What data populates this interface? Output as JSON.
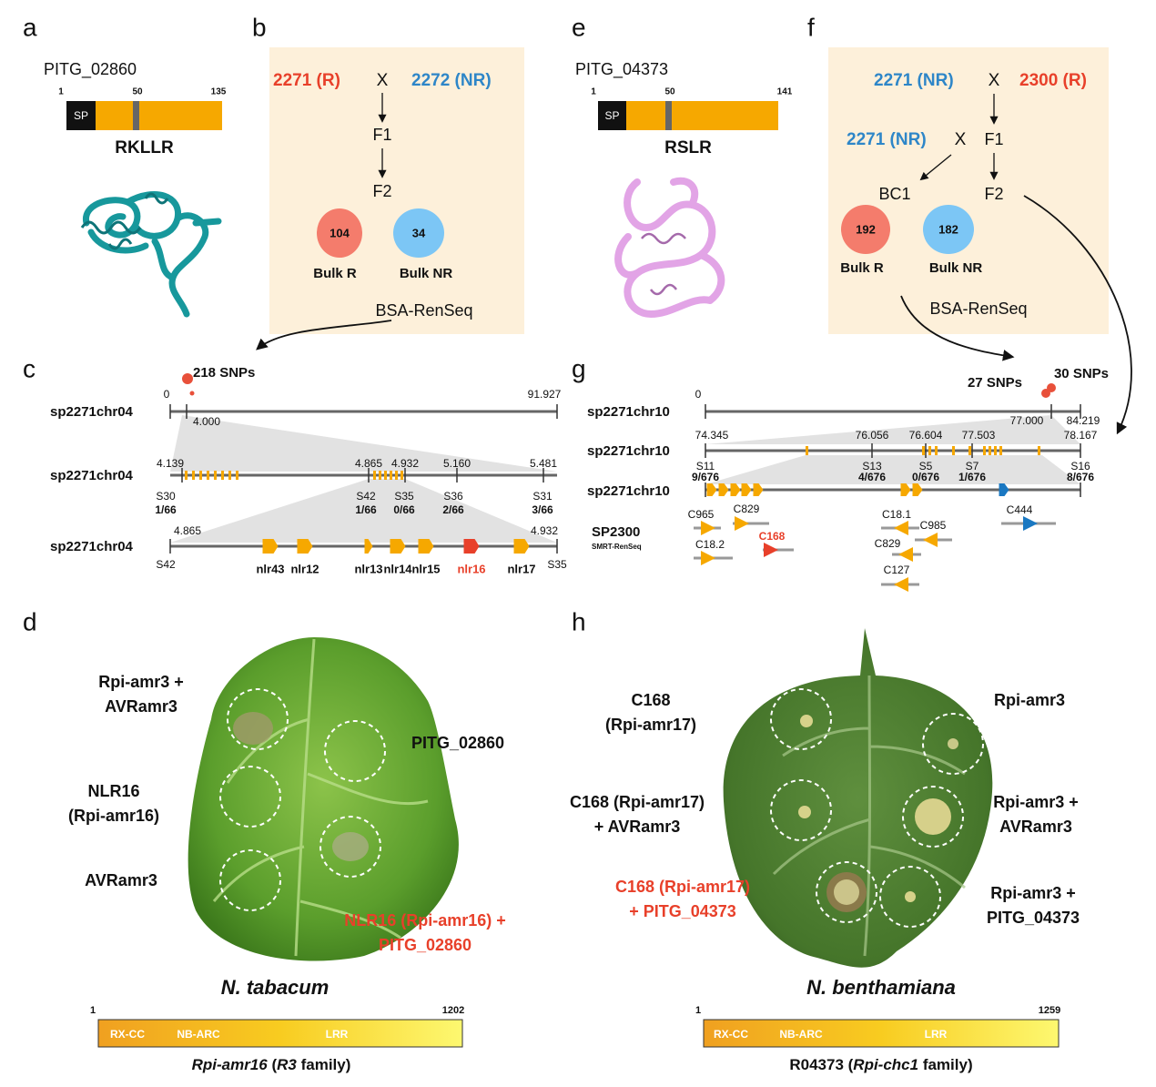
{
  "panels": {
    "a": {
      "letter": "a",
      "gene": "PITG_02860",
      "ticks": [
        "1",
        "50",
        "135"
      ],
      "domain": "SP",
      "motif": "RKLLR"
    },
    "b": {
      "letter": "b",
      "parent_r": "2271 (R)",
      "cross": "X",
      "parent_nr": "2272 (NR)",
      "f1": "F1",
      "f2": "F2",
      "bulks": [
        {
          "count": "104",
          "label": "Bulk R"
        },
        {
          "count": "34",
          "label": "Bulk NR"
        }
      ],
      "method": "BSA-RenSeq"
    },
    "c": {
      "letter": "c",
      "snps": "218 SNPs",
      "tracks": [
        {
          "name": "sp2271chr04",
          "labels": [
            "0",
            "91.927",
            "4.000"
          ]
        },
        {
          "name": "sp2271chr04",
          "positions": [
            "4.139",
            "4.865",
            "4.932",
            "5.160",
            "5.481"
          ],
          "markers": [
            {
              "name": "S30",
              "ratio": "1/66"
            },
            {
              "name": "S42",
              "ratio": "1/66"
            },
            {
              "name": "S35",
              "ratio": "0/66"
            },
            {
              "name": "S36",
              "ratio": "2/66"
            },
            {
              "name": "S31",
              "ratio": "3/66"
            }
          ]
        },
        {
          "name": "sp2271chr04",
          "positions": [
            "4.865",
            "4.932"
          ],
          "markers": [
            "S42",
            "S35"
          ],
          "genes": [
            "nlr43",
            "nlr12",
            "nlr13",
            "nlr14",
            "nlr15",
            "nlr16",
            "nlr17"
          ]
        }
      ]
    },
    "d": {
      "letter": "d",
      "labels": [
        [
          "Rpi-amr3 +",
          "AVRamr3"
        ],
        [
          "PITG_02860"
        ],
        [
          "NLR16",
          "(Rpi-amr16)"
        ],
        [
          "AVRamr3"
        ],
        [
          "NLR16 (Rpi-amr16) +",
          "PITG_02860"
        ]
      ],
      "species": "N. tabacum",
      "bar_ticks": [
        "1",
        "1202"
      ],
      "domains": [
        "RX-CC",
        "NB-ARC",
        "LRR"
      ],
      "caption": [
        "Rpi-amr16",
        " (",
        "R3",
        " family)"
      ]
    },
    "e": {
      "letter": "e",
      "gene": "PITG_04373",
      "ticks": [
        "1",
        "50",
        "141"
      ],
      "domain": "SP",
      "motif": "RSLR"
    },
    "f": {
      "letter": "f",
      "top": {
        "parent_nr": "2271 (NR)",
        "cross": "X",
        "parent_r": "2300 (R)"
      },
      "back": {
        "parent_nr": "2271 (NR)",
        "cross": "X",
        "f1": "F1"
      },
      "bc1": "BC1",
      "f2": "F2",
      "bulks": [
        {
          "count": "192",
          "label": "Bulk R"
        },
        {
          "count": "182",
          "label": "Bulk NR"
        }
      ],
      "method": "BSA-RenSeq"
    },
    "g": {
      "letter": "g",
      "snps": [
        "27 SNPs",
        "30 SNPs"
      ],
      "tracks": [
        {
          "name": "sp2271chr10",
          "labels": [
            "0",
            "84.219",
            "77.000"
          ]
        },
        {
          "name": "sp2271chr10",
          "positions": [
            "74.345",
            "76.056",
            "76.604",
            "77.503",
            "78.167"
          ],
          "markers": [
            {
              "name": "S11",
              "ratio": "9/676"
            },
            {
              "name": "S13",
              "ratio": "4/676"
            },
            {
              "name": "S5",
              "ratio": "0/676"
            },
            {
              "name": "S7",
              "ratio": "1/676"
            },
            {
              "name": "S16",
              "ratio": "8/676"
            }
          ]
        },
        {
          "name": "sp2271chr10"
        }
      ],
      "assembly": "SP2300",
      "assembly_method": "SMRT-RenSeq",
      "contigs": [
        "C965",
        "C829",
        "C168",
        "C18.2",
        "C18.1",
        "C985",
        "C829",
        "C127",
        "C444"
      ]
    },
    "h": {
      "letter": "h",
      "labels": [
        [
          "C168",
          "(Rpi-amr17)"
        ],
        [
          "Rpi-amr3"
        ],
        [
          "C168 (Rpi-amr17)",
          "+ AVRamr3"
        ],
        [
          "Rpi-amr3 +",
          "AVRamr3"
        ],
        [
          "C168 (Rpi-amr17)",
          "+ PITG_04373"
        ],
        [
          "Rpi-amr3 +",
          "PITG_04373"
        ]
      ],
      "species": "N. benthamiana",
      "bar_ticks": [
        "1",
        "1259"
      ],
      "domains": [
        "RX-CC",
        "NB-ARC",
        "LRR"
      ],
      "caption": [
        "R04373 (",
        "Rpi-chc1",
        " family)"
      ]
    }
  }
}
